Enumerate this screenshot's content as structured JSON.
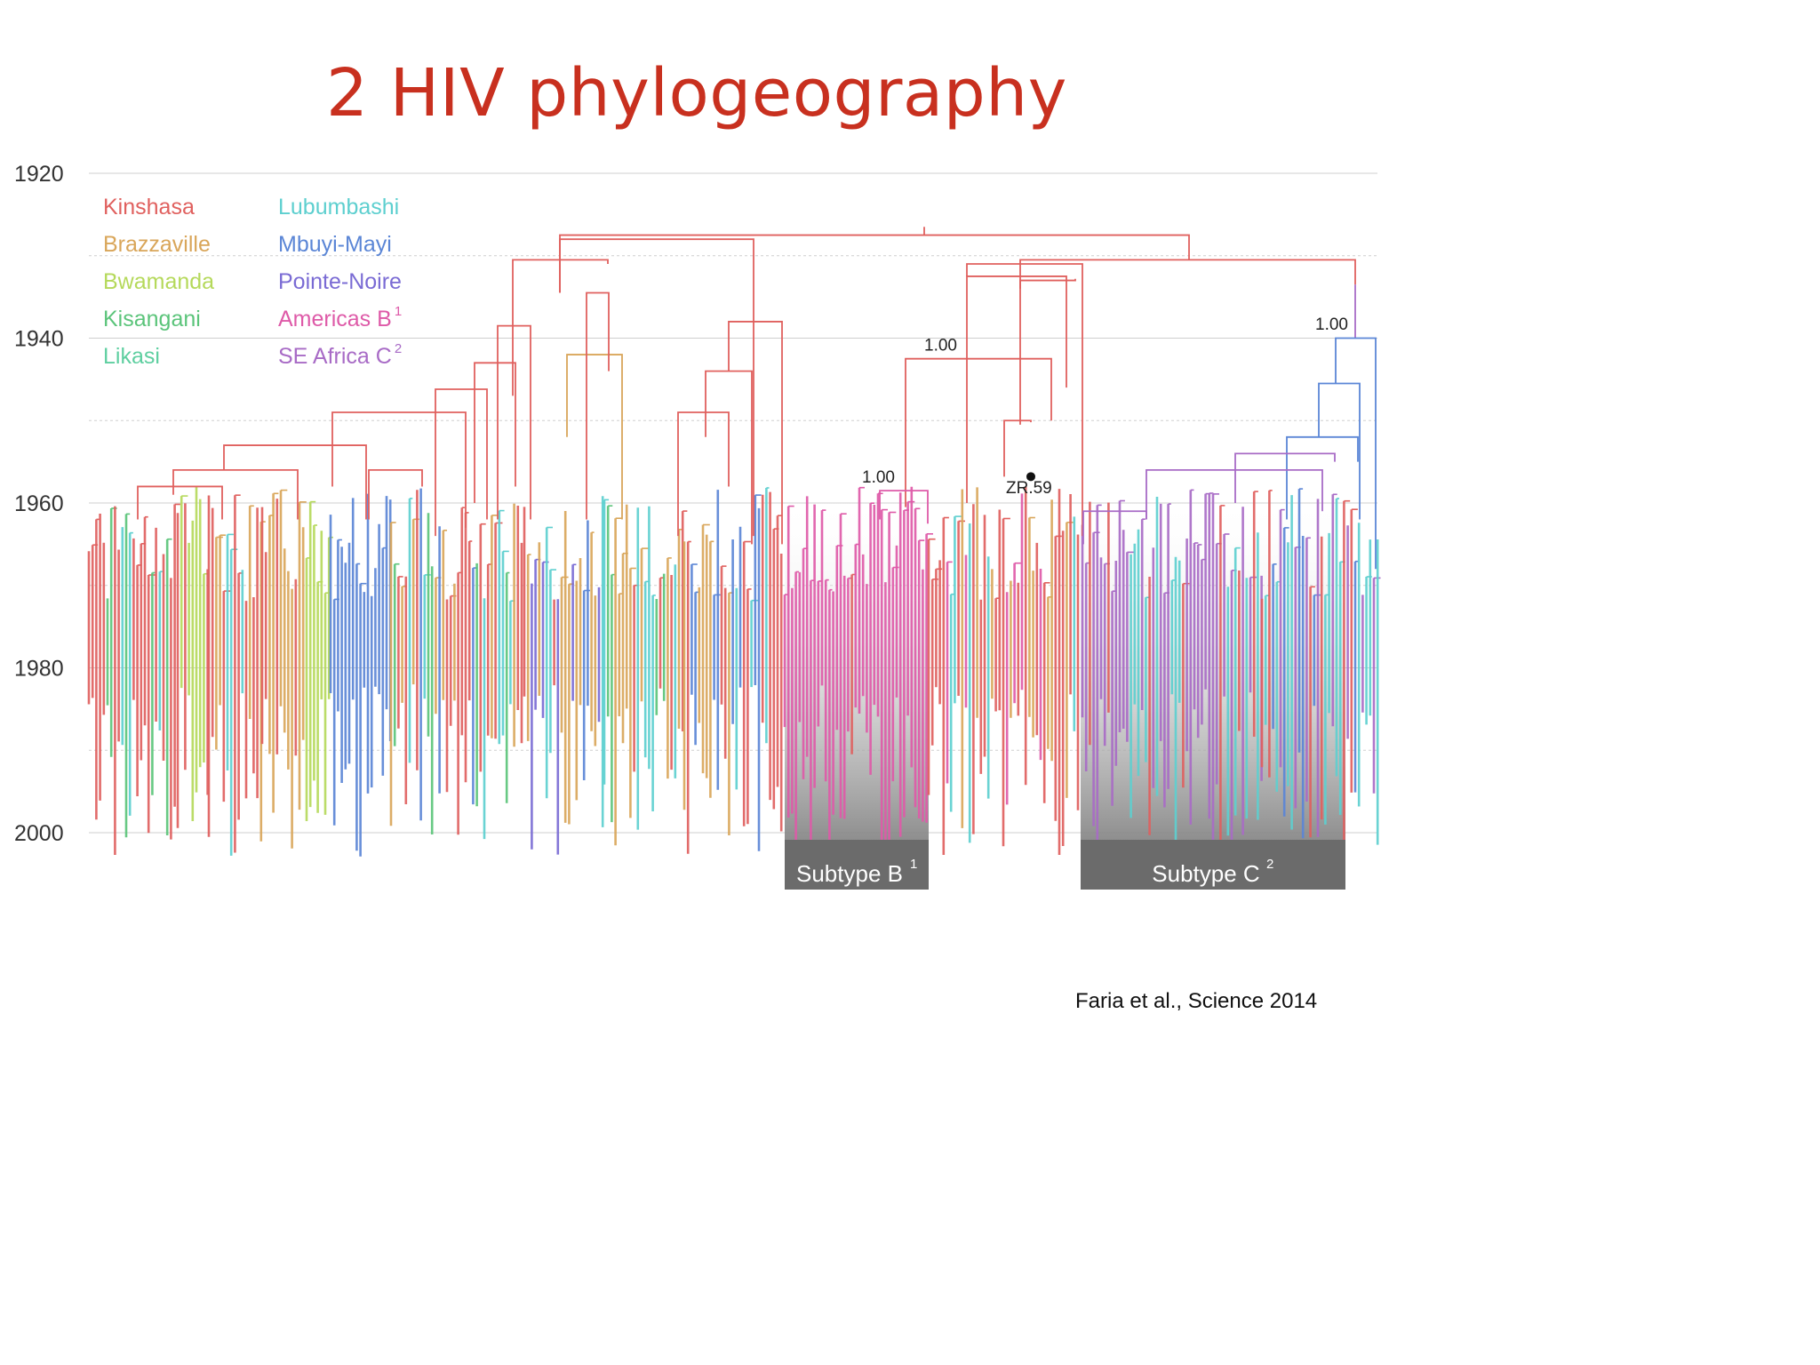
{
  "title": "2 HIV phylogeography",
  "citation": "Faria et al., Science 2014",
  "y_axis": {
    "ticks": [
      "1920",
      "1940",
      "1960",
      "1980",
      "2000"
    ]
  },
  "legend": [
    {
      "key": "kinshasa",
      "label": "Kinshasa",
      "sup": "",
      "color": "#e0605e"
    },
    {
      "key": "brazzaville",
      "label": "Brazzaville",
      "sup": "",
      "color": "#d9a65a"
    },
    {
      "key": "bwamanda",
      "label": "Bwamanda",
      "sup": "",
      "color": "#b5d95b"
    },
    {
      "key": "kisangani",
      "label": "Kisangani",
      "sup": "",
      "color": "#5bc47a"
    },
    {
      "key": "likasi",
      "label": "Likasi",
      "sup": "",
      "color": "#5ecfa0"
    },
    {
      "key": "lubumbashi",
      "label": "Lubumbashi",
      "sup": "",
      "color": "#5dcfcf"
    },
    {
      "key": "mbuyi-mayi",
      "label": "Mbuyi-Mayi",
      "sup": "",
      "color": "#5b86d6"
    },
    {
      "key": "pointe-noire",
      "label": "Pointe-Noire",
      "sup": "",
      "color": "#7a6bd4"
    },
    {
      "key": "americas-b",
      "label": "Americas B",
      "sup": "1",
      "color": "#de5aa8"
    },
    {
      "key": "se-africa-c",
      "label": "SE Africa C",
      "sup": "2",
      "color": "#a86bc6"
    }
  ],
  "support_labels": [
    {
      "text": "1.00",
      "target": "node-b-root"
    },
    {
      "text": "1.00",
      "target": "node-b-clade"
    },
    {
      "text": "1.00",
      "target": "node-c-clade"
    }
  ],
  "sample_label": {
    "text": "ZR.59"
  },
  "subtype_boxes": [
    {
      "key": "b",
      "label": "Subtype B",
      "sup": "1"
    },
    {
      "key": "c",
      "label": "Subtype C",
      "sup": "2"
    }
  ]
}
